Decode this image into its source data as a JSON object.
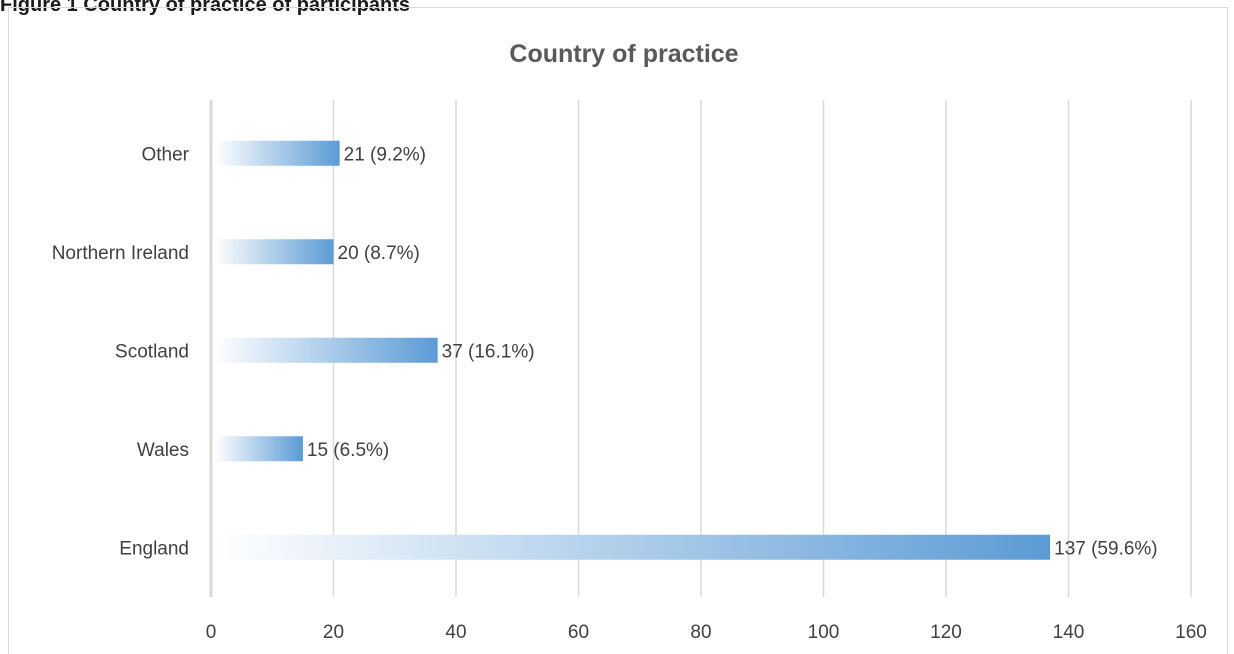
{
  "caption": "Figure 1 Country of practice of participants",
  "chart_data": {
    "type": "bar",
    "orientation": "horizontal",
    "title": "Country of practice",
    "xlabel": "",
    "ylabel": "",
    "categories": [
      "England",
      "Wales",
      "Scotland",
      "Northern Ireland",
      "Other"
    ],
    "values": [
      137,
      15,
      37,
      20,
      21
    ],
    "data_labels": [
      "137 (59.6%)",
      "15 (6.5%)",
      "37 (16.1%)",
      "20 (8.7%)",
      "21 (9.2%)"
    ],
    "xlim": [
      0,
      160
    ],
    "xticks": [
      0,
      20,
      40,
      60,
      80,
      100,
      120,
      140,
      160
    ],
    "grid": true,
    "legend": "none",
    "colors": {
      "bar_end": "#5b9bd5",
      "bar_start": "#ffffff",
      "grid": "#d9d9d9",
      "axis": "#d9d9d9",
      "text": "#404040",
      "title": "#595959"
    }
  }
}
